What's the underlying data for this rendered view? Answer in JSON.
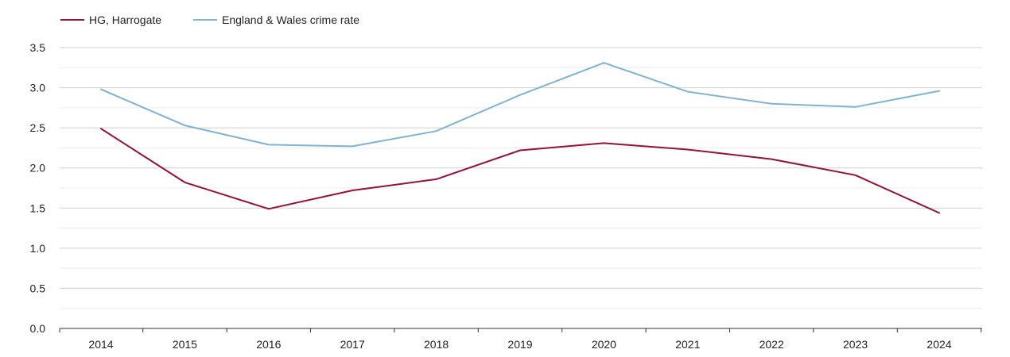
{
  "chart_data": {
    "type": "line",
    "title": "",
    "xlabel": "",
    "ylabel": "",
    "categories": [
      "2014",
      "2015",
      "2016",
      "2017",
      "2018",
      "2019",
      "2020",
      "2021",
      "2022",
      "2023",
      "2024"
    ],
    "ylim": [
      0,
      3.5
    ],
    "yticks": [
      "0.0",
      "0.5",
      "1.0",
      "1.5",
      "2.0",
      "2.5",
      "3.0",
      "3.5"
    ],
    "grid": true,
    "legend_position": "top-left",
    "series": [
      {
        "name": "HG, Harrogate",
        "color": "#9b0e36",
        "values": [
          2.49,
          1.82,
          1.49,
          1.72,
          1.86,
          2.22,
          2.31,
          2.23,
          2.11,
          1.91,
          1.44
        ]
      },
      {
        "name": "England & Wales crime rate",
        "color": "#7eb3d5",
        "values": [
          2.98,
          2.53,
          2.29,
          2.27,
          2.46,
          2.91,
          3.31,
          2.95,
          2.8,
          2.76,
          2.96
        ]
      }
    ]
  }
}
